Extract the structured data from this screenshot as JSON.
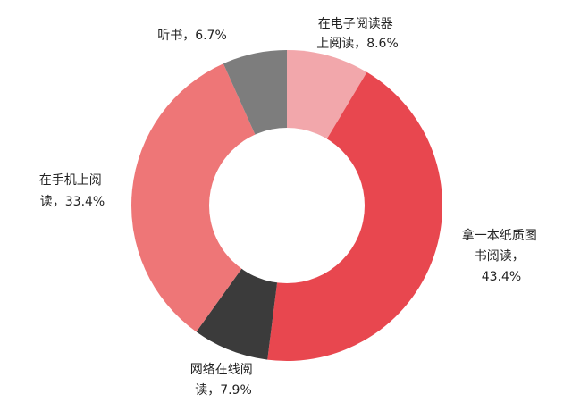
{
  "chart_data": {
    "type": "pie",
    "donut": true,
    "title": "",
    "legend": "none",
    "slices": [
      {
        "label_lines": [
          "在电子阅读器",
          "上阅读，8.6%"
        ],
        "category": "在电子阅读器上阅读",
        "value": 8.6,
        "color": "#F2A7AB"
      },
      {
        "label_lines": [
          "拿一本纸质图",
          "书阅读，",
          "43.4%"
        ],
        "category": "拿一本纸质图书阅读",
        "value": 43.4,
        "color": "#E8474F"
      },
      {
        "label_lines": [
          "网络在线阅",
          "读，7.9%"
        ],
        "category": "网络在线阅读",
        "value": 7.9,
        "color": "#3B3B3B"
      },
      {
        "label_lines": [
          "在手机上阅",
          "读，33.4%"
        ],
        "category": "在手机上阅读",
        "value": 33.4,
        "color": "#EE7677"
      },
      {
        "label_lines": [
          "听书，6.7%"
        ],
        "category": "听书",
        "value": 6.7,
        "color": "#7D7D7D"
      }
    ]
  }
}
